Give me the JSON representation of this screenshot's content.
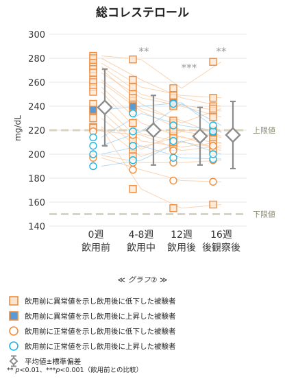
{
  "chart_data": {
    "type": "scatter",
    "title": "総コレステロール",
    "ylabel": "mg/dL",
    "ylim": [
      140,
      300
    ],
    "yticks": [
      140,
      160,
      180,
      200,
      220,
      240,
      260,
      280,
      300
    ],
    "categories": [
      {
        "line1": "0週",
        "line2": "飲用前"
      },
      {
        "line1": "4-8週",
        "line2": "飲用中"
      },
      {
        "line1": "12週",
        "line2": "飲用後"
      },
      {
        "line1": "16週",
        "line2": "後観察後"
      }
    ],
    "reference_lines": [
      {
        "label": "上限値",
        "value": 220
      },
      {
        "label": "下限値",
        "value": 150
      }
    ],
    "significance": [
      {
        "category_index": 1,
        "label": "**"
      },
      {
        "category_index": 2,
        "label": "***"
      },
      {
        "category_index": 3,
        "label": "**"
      }
    ],
    "series": [
      {
        "name": "飲用前に異常値を示し飲用後に低下した被験者",
        "marker": "square-open",
        "color": "#f08c3c",
        "subjects": [
          [
            282,
            279,
            255,
            277
          ],
          [
            280,
            262,
            247,
            240
          ],
          [
            276,
            256,
            249,
            247
          ],
          [
            273,
            250,
            241,
            236
          ],
          [
            271,
            242,
            226,
            238
          ],
          [
            268,
            247,
            240,
            231
          ],
          [
            262,
            238,
            228,
            215
          ],
          [
            260,
            236,
            220,
            219
          ],
          [
            256,
            226,
            214,
            209
          ],
          [
            252,
            217,
            210,
            220
          ],
          [
            242,
            211,
            206,
            210
          ],
          [
            236,
            206,
            215,
            203
          ],
          [
            230,
            204,
            219,
            214
          ],
          [
            223,
            198,
            210,
            205
          ],
          [
            222,
            171,
            155,
            158
          ]
        ]
      },
      {
        "name": "飲用前に異常値を示し飲用後に上昇した被験者",
        "marker": "square-filled",
        "color": "#5b9bd5",
        "subjects": [
          [
            237,
            240,
            243,
            218
          ]
        ]
      },
      {
        "name": "飲用前に正常値を示し飲用後に低下した被験者",
        "marker": "circle-orange",
        "color": "#f08c3c",
        "subjects": [
          [
            219,
            216,
            203,
            207
          ],
          [
            199,
            193,
            193,
            195
          ],
          [
            197,
            187,
            178,
            177
          ]
        ]
      },
      {
        "name": "飲用前に正常値を示し飲用後に上昇した被験者",
        "marker": "circle-cyan",
        "color": "#1fb5e3",
        "subjects": [
          [
            214,
            234,
            224,
            219
          ],
          [
            207,
            219,
            242,
            224
          ],
          [
            200,
            207,
            197,
            196
          ],
          [
            190,
            195,
            211,
            200
          ]
        ]
      }
    ],
    "mean_sd": [
      {
        "mean": 239,
        "sd": 32
      },
      {
        "mean": 220,
        "sd": 29
      },
      {
        "mean": 215,
        "sd": 24
      },
      {
        "mean": 216,
        "sd": 28
      }
    ],
    "mean_sd_legend": "平均値±標準偏差"
  },
  "caption": {
    "left": "≪",
    "text": "グラフ②",
    "right": "≫"
  },
  "footnote": {
    "a": "** ",
    "p1": "p",
    "b": "<0.01、***",
    "p2": "p",
    "c": "<0.001（飲用前との比較）"
  }
}
